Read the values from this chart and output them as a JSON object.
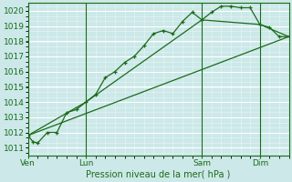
{
  "background_color": "#cce8e8",
  "grid_major_color": "#ffffff",
  "grid_minor_color": "#ddf0f0",
  "line_color": "#1a6b1a",
  "title": "Pression niveau de la mer( hPa )",
  "ylim": [
    1010.5,
    1020.5
  ],
  "yticks": [
    1011,
    1012,
    1013,
    1014,
    1015,
    1016,
    1017,
    1018,
    1019,
    1020
  ],
  "xtick_labels": [
    "Ven",
    "Lun",
    "Sam",
    "Dim"
  ],
  "xtick_positions": [
    0,
    6,
    18,
    24
  ],
  "xlim": [
    0,
    27
  ],
  "vlines": [
    0,
    6,
    18,
    24
  ],
  "series1_x": [
    0,
    0.5,
    1,
    2,
    3,
    4,
    5,
    6,
    7,
    8,
    9,
    10,
    11,
    12,
    13,
    14,
    15,
    16,
    17,
    18,
    19,
    20,
    21,
    22,
    23,
    24,
    25,
    26,
    27
  ],
  "series1_y": [
    1011.8,
    1011.4,
    1011.3,
    1012.0,
    1012.0,
    1013.3,
    1013.5,
    1014.0,
    1014.5,
    1015.6,
    1016.0,
    1016.6,
    1017.0,
    1017.7,
    1018.5,
    1018.7,
    1018.5,
    1019.3,
    1019.9,
    1019.4,
    1019.9,
    1020.3,
    1020.3,
    1020.2,
    1020.2,
    1019.1,
    1018.9,
    1018.3,
    1018.3
  ],
  "series2_x": [
    0,
    6,
    18,
    24,
    27
  ],
  "series2_y": [
    1011.8,
    1014.0,
    1019.4,
    1019.1,
    1018.3
  ],
  "series3_x": [
    0,
    27
  ],
  "series3_y": [
    1011.8,
    1018.3
  ]
}
